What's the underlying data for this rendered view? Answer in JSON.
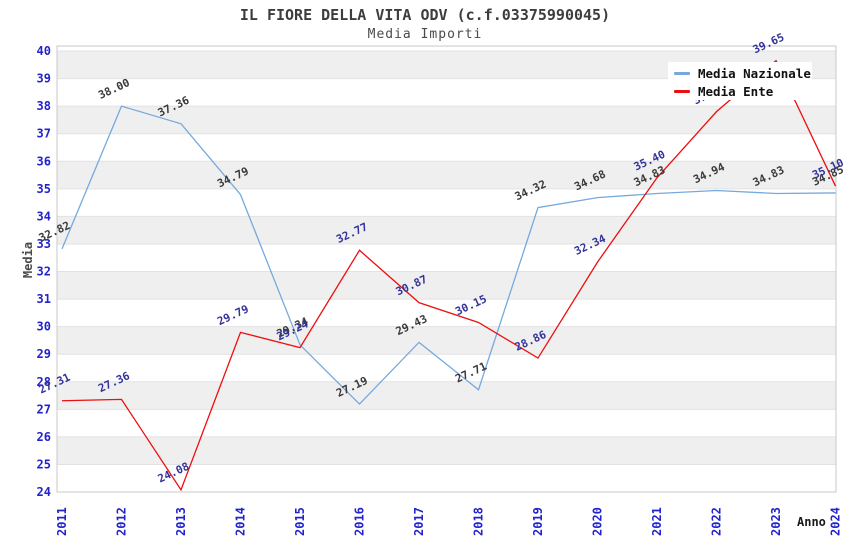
{
  "chart_data": {
    "type": "line",
    "title": "IL FIORE DELLA VITA ODV (c.f.03375990045)",
    "subtitle": "Media Importi",
    "xlabel": "Anno",
    "ylabel": "Media",
    "x": [
      "2011",
      "2012",
      "2013",
      "2014",
      "2015",
      "2016",
      "2017",
      "2018",
      "2019",
      "2020",
      "2021",
      "2022",
      "2023",
      "2024"
    ],
    "ylim": [
      24,
      40
    ],
    "y_tick_step": 1,
    "grid": "horizontal gridlines with alternating gray bands",
    "legend_position": "top-right",
    "point_labels_visible": true,
    "series": [
      {
        "name": "Media Nazionale",
        "color": "#76A9DE",
        "label_color": "#3A3A3A",
        "values": [
          32.82,
          38.0,
          37.36,
          34.79,
          29.34,
          27.19,
          29.43,
          27.71,
          34.32,
          34.68,
          34.83,
          34.94,
          34.83,
          34.85
        ]
      },
      {
        "name": "Media Ente",
        "color": "#ED0E0E",
        "label_color": "#333399",
        "values": [
          27.31,
          27.36,
          24.08,
          29.79,
          29.24,
          32.77,
          30.87,
          30.15,
          28.86,
          32.34,
          35.4,
          37.8,
          39.65,
          35.1
        ]
      }
    ]
  },
  "colors": {
    "tick_label": "#2323CC",
    "band": "#EFEFEF",
    "gridline": "#E2E2E2",
    "plot_border": "#C9C9C9",
    "background": "#FFFFFF"
  }
}
